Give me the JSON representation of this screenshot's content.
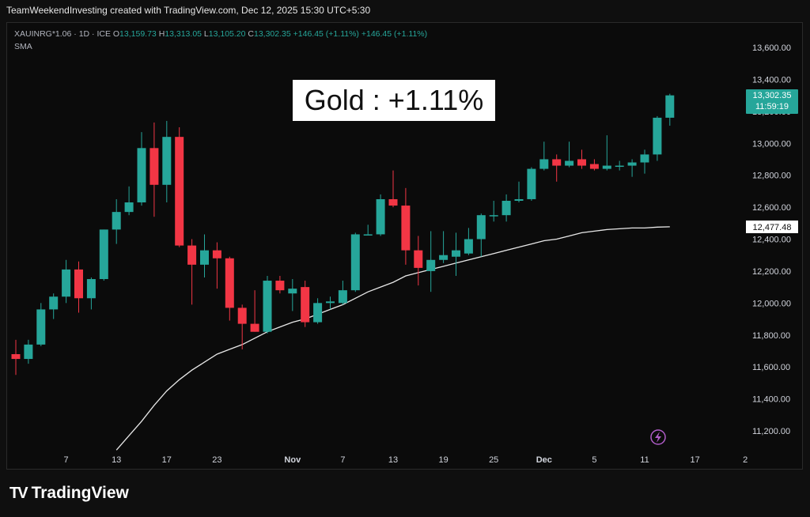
{
  "header": {
    "attribution": "TeamWeekendInvesting created with TradingView.com, Dec 12, 2025 15:30 UTC+5:30"
  },
  "legend": {
    "symbol": "XAUINRG*1.06 · 1D · ICE",
    "o_label": "O",
    "o_value": "13,159.73",
    "h_label": "H",
    "h_value": "13,313.05",
    "l_label": "L",
    "l_value": "13,105.20",
    "c_label": "C",
    "c_value": "13,302.35",
    "change": "+146.45 (+1.11%)",
    "change2": "+146.45 (+1.11%)",
    "sma_label": "SMA"
  },
  "annotation": {
    "title": "Gold : +1.11%"
  },
  "price_badge": {
    "price": "13,302.35",
    "countdown": "11:59:19",
    "sma_value": "12,477.48"
  },
  "logo": {
    "text": "TradingView",
    "mark": "TV"
  },
  "colors": {
    "up": "#26a69a",
    "down": "#f23645",
    "sma": "#e8e8e8",
    "badge_up": "#26a69a",
    "grid_text": "#d1d4dc"
  },
  "chart_data": {
    "type": "candlestick",
    "ylim": [
      11050,
      13700
    ],
    "y_ticks": [
      11200,
      11400,
      11600,
      11800,
      12000,
      12200,
      12400,
      12600,
      12800,
      13000,
      13200,
      13400,
      13600
    ],
    "y_tick_labels": [
      "11,200.00",
      "11,400.00",
      "11,600.00",
      "11,800.00",
      "12,000.00",
      "12,200.00",
      "12,400.00",
      "12,600.00",
      "12,800.00",
      "13,000.00",
      "13,200.00",
      "13,400.00",
      "13,600.00"
    ],
    "x_labels": [
      {
        "label": "7",
        "day": 4
      },
      {
        "label": "13",
        "day": 8
      },
      {
        "label": "17",
        "day": 12
      },
      {
        "label": "23",
        "day": 16
      },
      {
        "label": "Nov",
        "day": 22
      },
      {
        "label": "7",
        "day": 26
      },
      {
        "label": "13",
        "day": 30
      },
      {
        "label": "19",
        "day": 34
      },
      {
        "label": "25",
        "day": 38
      },
      {
        "label": "Dec",
        "day": 42
      },
      {
        "label": "5",
        "day": 46
      },
      {
        "label": "11",
        "day": 50
      },
      {
        "label": "17",
        "day": 54
      },
      {
        "label": "2",
        "day": 58
      }
    ],
    "candles": [
      {
        "o": 11680,
        "h": 11770,
        "l": 11550,
        "c": 11650
      },
      {
        "o": 11650,
        "h": 11770,
        "l": 11620,
        "c": 11740
      },
      {
        "o": 11740,
        "h": 12000,
        "l": 11730,
        "c": 11960
      },
      {
        "o": 11960,
        "h": 12060,
        "l": 11900,
        "c": 12040
      },
      {
        "o": 12040,
        "h": 12270,
        "l": 12000,
        "c": 12210
      },
      {
        "o": 12210,
        "h": 12260,
        "l": 11940,
        "c": 12030
      },
      {
        "o": 12030,
        "h": 12160,
        "l": 11960,
        "c": 12150
      },
      {
        "o": 12150,
        "h": 12460,
        "l": 12140,
        "c": 12460
      },
      {
        "o": 12460,
        "h": 12650,
        "l": 12370,
        "c": 12570
      },
      {
        "o": 12570,
        "h": 12730,
        "l": 12550,
        "c": 12630
      },
      {
        "o": 12630,
        "h": 13070,
        "l": 12610,
        "c": 12970
      },
      {
        "o": 12970,
        "h": 13130,
        "l": 12540,
        "c": 12740
      },
      {
        "o": 12740,
        "h": 13140,
        "l": 12630,
        "c": 13040
      },
      {
        "o": 13040,
        "h": 13100,
        "l": 12350,
        "c": 12360
      },
      {
        "o": 12360,
        "h": 12400,
        "l": 11990,
        "c": 12240
      },
      {
        "o": 12240,
        "h": 12430,
        "l": 12160,
        "c": 12330
      },
      {
        "o": 12330,
        "h": 12380,
        "l": 12090,
        "c": 12280
      },
      {
        "o": 12280,
        "h": 12290,
        "l": 11890,
        "c": 11970
      },
      {
        "o": 11970,
        "h": 11990,
        "l": 11710,
        "c": 11870
      },
      {
        "o": 11870,
        "h": 12080,
        "l": 11820,
        "c": 11820
      },
      {
        "o": 11820,
        "h": 12170,
        "l": 11810,
        "c": 12140
      },
      {
        "o": 12140,
        "h": 12170,
        "l": 12060,
        "c": 12080
      },
      {
        "o": 12060,
        "h": 12150,
        "l": 11950,
        "c": 12090
      },
      {
        "o": 12100,
        "h": 12140,
        "l": 11850,
        "c": 11880
      },
      {
        "o": 11880,
        "h": 12030,
        "l": 11870,
        "c": 12000
      },
      {
        "o": 12000,
        "h": 12040,
        "l": 11960,
        "c": 12010
      },
      {
        "o": 12000,
        "h": 12140,
        "l": 11990,
        "c": 12080
      },
      {
        "o": 12080,
        "h": 12440,
        "l": 12070,
        "c": 12430
      },
      {
        "o": 12430,
        "h": 12490,
        "l": 12430,
        "c": 12430
      },
      {
        "o": 12430,
        "h": 12680,
        "l": 12420,
        "c": 12650
      },
      {
        "o": 12650,
        "h": 12830,
        "l": 12600,
        "c": 12610
      },
      {
        "o": 12610,
        "h": 12720,
        "l": 12240,
        "c": 12330
      },
      {
        "o": 12330,
        "h": 12420,
        "l": 12110,
        "c": 12220
      },
      {
        "o": 12200,
        "h": 12450,
        "l": 12070,
        "c": 12270
      },
      {
        "o": 12270,
        "h": 12450,
        "l": 12250,
        "c": 12300
      },
      {
        "o": 12290,
        "h": 12440,
        "l": 12170,
        "c": 12330
      },
      {
        "o": 12310,
        "h": 12470,
        "l": 12300,
        "c": 12400
      },
      {
        "o": 12400,
        "h": 12560,
        "l": 12290,
        "c": 12550
      },
      {
        "o": 12550,
        "h": 12640,
        "l": 12510,
        "c": 12550
      },
      {
        "o": 12550,
        "h": 12680,
        "l": 12510,
        "c": 12640
      },
      {
        "o": 12640,
        "h": 12760,
        "l": 12630,
        "c": 12650
      },
      {
        "o": 12650,
        "h": 12850,
        "l": 12640,
        "c": 12840
      },
      {
        "o": 12840,
        "h": 13010,
        "l": 12830,
        "c": 12900
      },
      {
        "o": 12900,
        "h": 12930,
        "l": 12760,
        "c": 12860
      },
      {
        "o": 12860,
        "h": 13010,
        "l": 12850,
        "c": 12890
      },
      {
        "o": 12900,
        "h": 12960,
        "l": 12840,
        "c": 12860
      },
      {
        "o": 12870,
        "h": 12900,
        "l": 12830,
        "c": 12840
      },
      {
        "o": 12840,
        "h": 13050,
        "l": 12830,
        "c": 12860
      },
      {
        "o": 12860,
        "h": 12890,
        "l": 12830,
        "c": 12860
      },
      {
        "o": 12860,
        "h": 12900,
        "l": 12790,
        "c": 12880
      },
      {
        "o": 12880,
        "h": 12960,
        "l": 12810,
        "c": 12930
      },
      {
        "o": 12930,
        "h": 13170,
        "l": 12890,
        "c": 13160
      },
      {
        "o": 13160,
        "h": 13310,
        "l": 13110,
        "c": 13300
      }
    ],
    "sma_series": [
      {
        "day": 8,
        "v": 11080
      },
      {
        "day": 9,
        "v": 11170
      },
      {
        "day": 10,
        "v": 11260
      },
      {
        "day": 11,
        "v": 11360
      },
      {
        "day": 12,
        "v": 11450
      },
      {
        "day": 13,
        "v": 11520
      },
      {
        "day": 14,
        "v": 11580
      },
      {
        "day": 15,
        "v": 11630
      },
      {
        "day": 16,
        "v": 11680
      },
      {
        "day": 17,
        "v": 11710
      },
      {
        "day": 18,
        "v": 11740
      },
      {
        "day": 19,
        "v": 11780
      },
      {
        "day": 20,
        "v": 11820
      },
      {
        "day": 21,
        "v": 11850
      },
      {
        "day": 22,
        "v": 11880
      },
      {
        "day": 23,
        "v": 11900
      },
      {
        "day": 24,
        "v": 11930
      },
      {
        "day": 25,
        "v": 11960
      },
      {
        "day": 26,
        "v": 11990
      },
      {
        "day": 27,
        "v": 12030
      },
      {
        "day": 28,
        "v": 12070
      },
      {
        "day": 29,
        "v": 12100
      },
      {
        "day": 30,
        "v": 12130
      },
      {
        "day": 31,
        "v": 12170
      },
      {
        "day": 32,
        "v": 12190
      },
      {
        "day": 33,
        "v": 12210
      },
      {
        "day": 34,
        "v": 12230
      },
      {
        "day": 35,
        "v": 12250
      },
      {
        "day": 36,
        "v": 12270
      },
      {
        "day": 37,
        "v": 12290
      },
      {
        "day": 38,
        "v": 12310
      },
      {
        "day": 39,
        "v": 12330
      },
      {
        "day": 40,
        "v": 12350
      },
      {
        "day": 41,
        "v": 12370
      },
      {
        "day": 42,
        "v": 12390
      },
      {
        "day": 43,
        "v": 12400
      },
      {
        "day": 44,
        "v": 12420
      },
      {
        "day": 45,
        "v": 12440
      },
      {
        "day": 46,
        "v": 12450
      },
      {
        "day": 47,
        "v": 12460
      },
      {
        "day": 48,
        "v": 12465
      },
      {
        "day": 49,
        "v": 12470
      },
      {
        "day": 50,
        "v": 12470
      },
      {
        "day": 51,
        "v": 12475
      },
      {
        "day": 52,
        "v": 12477
      }
    ]
  }
}
